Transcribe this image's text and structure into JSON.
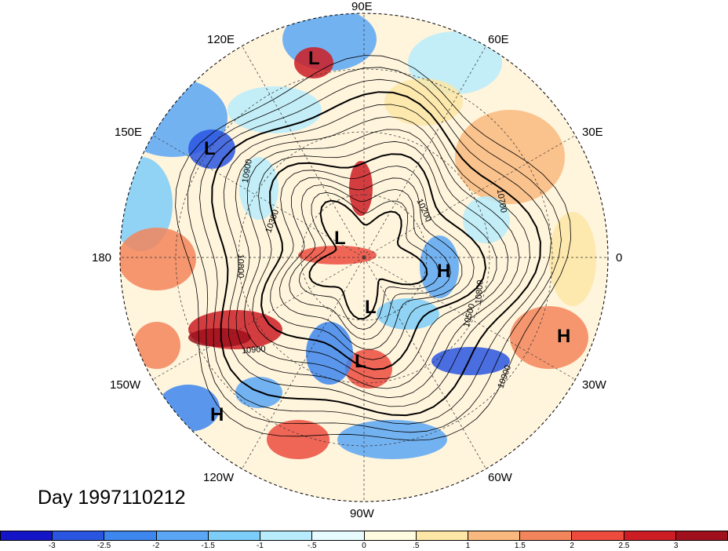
{
  "map": {
    "projection": "north-polar-stereographic",
    "center_lon_top": "90E",
    "longitude_labels": [
      {
        "id": "lon-90e",
        "text": "90E"
      },
      {
        "id": "lon-60e",
        "text": "60E"
      },
      {
        "id": "lon-30e",
        "text": "30E"
      },
      {
        "id": "lon-0",
        "text": "0"
      },
      {
        "id": "lon-30w",
        "text": "30W"
      },
      {
        "id": "lon-60w",
        "text": "60W"
      },
      {
        "id": "lon-90w",
        "text": "90W"
      },
      {
        "id": "lon-120w",
        "text": "120W"
      },
      {
        "id": "lon-150w",
        "text": "150W"
      },
      {
        "id": "lon-180",
        "text": "180"
      },
      {
        "id": "lon-150e",
        "text": "150E"
      },
      {
        "id": "lon-120e",
        "text": "120E"
      }
    ],
    "pressure_markers": [
      {
        "id": "marker-l-1",
        "text": "L"
      },
      {
        "id": "marker-l-2",
        "text": "L"
      },
      {
        "id": "marker-l-3",
        "text": "L"
      },
      {
        "id": "marker-l-4",
        "text": "L"
      },
      {
        "id": "marker-l-5",
        "text": "L"
      },
      {
        "id": "marker-h-1",
        "text": "H"
      },
      {
        "id": "marker-h-2",
        "text": "H"
      },
      {
        "id": "marker-h-3",
        "text": "H"
      }
    ],
    "contour_labels": [
      {
        "id": "cl-10900-a",
        "text": "10900"
      },
      {
        "id": "cl-10300",
        "text": "10300"
      },
      {
        "id": "cl-10800",
        "text": "10800"
      },
      {
        "id": "cl-10200",
        "text": "10200"
      },
      {
        "id": "cl-10700",
        "text": "10700"
      },
      {
        "id": "cl-10800-b",
        "text": "10800"
      },
      {
        "id": "cl-10500",
        "text": "10500"
      },
      {
        "id": "cl-10900-b",
        "text": "10900"
      },
      {
        "id": "cl-10900-c",
        "text": "10900"
      }
    ]
  },
  "timestamp_label": "Day 1997110212",
  "colorbar": {
    "colors": [
      "#1515c8",
      "#2a55e0",
      "#3d86ee",
      "#5aa6f4",
      "#7ccdf8",
      "#b8ecfc",
      "#e6faff",
      "#fffbe0",
      "#fde6a6",
      "#f9b97e",
      "#f3855c",
      "#ec4b3e",
      "#cc1c24",
      "#a0101c"
    ],
    "labels": [
      "-3",
      "-2.5",
      "-2",
      "-1.5",
      "-1",
      "-.5",
      "0",
      ".5",
      "1",
      "1.5",
      "2",
      "2.5",
      "3"
    ]
  }
}
